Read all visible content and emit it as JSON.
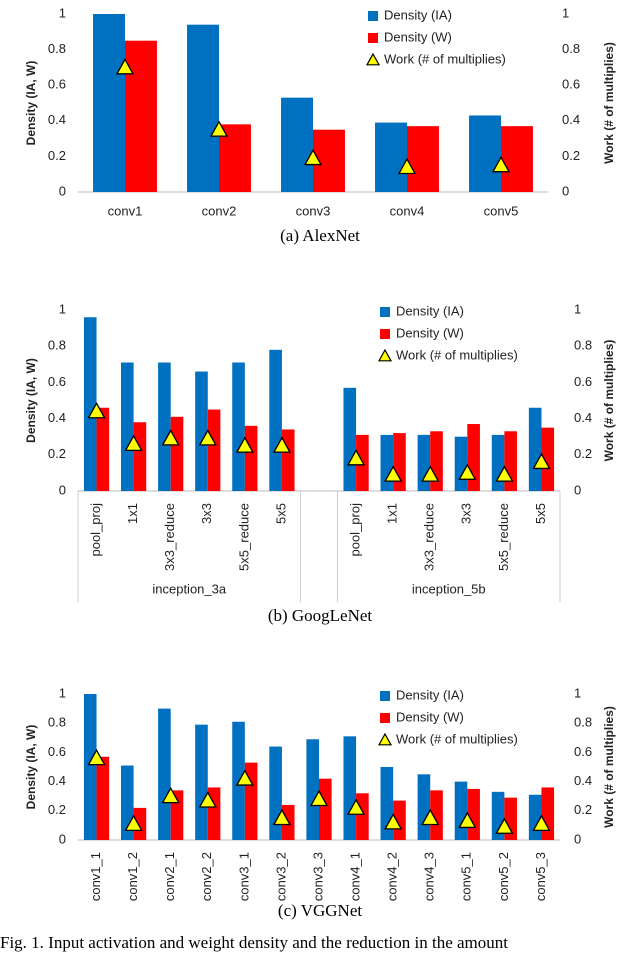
{
  "chart_data": [
    {
      "type": "bar",
      "caption": "(a)  AlexNet",
      "y_label": "Density (IA, W)",
      "y2_label": "Work (# of multiplies)",
      "categories": [
        "conv1",
        "conv2",
        "conv3",
        "conv4",
        "conv5"
      ],
      "series": [
        {
          "name": "Density (IA)",
          "color": "#0070c0",
          "values": [
            1.0,
            0.94,
            0.53,
            0.39,
            0.43
          ]
        },
        {
          "name": "Density (W)",
          "color": "#ff0000",
          "values": [
            0.85,
            0.38,
            0.35,
            0.37,
            0.37
          ]
        },
        {
          "name": "Work (# of multiplies)",
          "type": "scatter",
          "axis": "y2",
          "color": "#ffff00",
          "values": [
            0.7,
            0.35,
            0.19,
            0.14,
            0.15
          ]
        }
      ],
      "ylim": [
        0,
        1
      ],
      "yticks": [
        0,
        0.2,
        0.4,
        0.6,
        0.8,
        1
      ],
      "y2lim": [
        0,
        1
      ],
      "y2ticks": [
        0,
        0.2,
        0.4,
        0.6,
        0.8,
        1
      ],
      "legend": "top-right",
      "grid": false
    },
    {
      "type": "bar",
      "caption": "(b)  GoogLeNet",
      "y_label": "Density (IA, W)",
      "y2_label": "Work (# of multiplies)",
      "categories": [
        "pool_proj",
        "1x1",
        "3x3_reduce",
        "3x3",
        "5x5_reduce",
        "5x5",
        null,
        "pool_proj",
        "1x1",
        "3x3_reduce",
        "3x3",
        "5x5_reduce",
        "5x5"
      ],
      "group_labels": [
        "inception_3a",
        "inception_5b"
      ],
      "series": [
        {
          "name": "Density (IA)",
          "color": "#0070c0",
          "values": [
            0.96,
            0.71,
            0.71,
            0.66,
            0.71,
            0.78,
            null,
            0.57,
            0.31,
            0.31,
            0.3,
            0.31,
            0.46
          ]
        },
        {
          "name": "Density (W)",
          "color": "#ff0000",
          "values": [
            0.46,
            0.38,
            0.41,
            0.45,
            0.36,
            0.34,
            null,
            0.31,
            0.32,
            0.33,
            0.37,
            0.33,
            0.35
          ]
        },
        {
          "name": "Work (# of multiplies)",
          "type": "scatter",
          "axis": "y2",
          "color": "#ffff00",
          "values": [
            0.44,
            0.26,
            0.29,
            0.29,
            0.25,
            0.25,
            null,
            0.18,
            0.09,
            0.09,
            0.1,
            0.09,
            0.16
          ]
        }
      ],
      "ylim": [
        0,
        1
      ],
      "yticks": [
        0,
        0.2,
        0.4,
        0.6,
        0.8,
        1
      ],
      "y2lim": [
        0,
        1
      ],
      "y2ticks": [
        0,
        0.2,
        0.4,
        0.6,
        0.8,
        1
      ],
      "legend": "top-right",
      "grid": false
    },
    {
      "type": "bar",
      "caption": "(c)  VGGNet",
      "y_label": "Density (IA, W)",
      "y2_label": "Work (# of multiplies)",
      "categories": [
        "conv1_1",
        "conv1_2",
        "conv2_1",
        "conv2_2",
        "conv3_1",
        "conv3_2",
        "conv3_3",
        "conv4_1",
        "conv4_2",
        "conv4_3",
        "conv5_1",
        "conv5_2",
        "conv5_3"
      ],
      "series": [
        {
          "name": "Density (IA)",
          "color": "#0070c0",
          "values": [
            1.0,
            0.51,
            0.9,
            0.79,
            0.81,
            0.64,
            0.69,
            0.71,
            0.5,
            0.45,
            0.4,
            0.33,
            0.31
          ]
        },
        {
          "name": "Density (W)",
          "color": "#ff0000",
          "values": [
            0.57,
            0.22,
            0.34,
            0.36,
            0.53,
            0.24,
            0.42,
            0.32,
            0.27,
            0.34,
            0.35,
            0.29,
            0.36
          ]
        },
        {
          "name": "Work (# of multiplies)",
          "type": "scatter",
          "axis": "y2",
          "color": "#ffff00",
          "values": [
            0.56,
            0.11,
            0.3,
            0.27,
            0.42,
            0.15,
            0.28,
            0.22,
            0.12,
            0.15,
            0.13,
            0.09,
            0.11
          ]
        }
      ],
      "ylim": [
        0,
        1
      ],
      "yticks": [
        0,
        0.2,
        0.4,
        0.6,
        0.8,
        1
      ],
      "y2lim": [
        0,
        1
      ],
      "y2ticks": [
        0,
        0.2,
        0.4,
        0.6,
        0.8,
        1
      ],
      "legend": "top-right",
      "grid": false
    }
  ],
  "figure_caption": "Fig. 1.  Input activation and weight density and the reduction in the amount"
}
